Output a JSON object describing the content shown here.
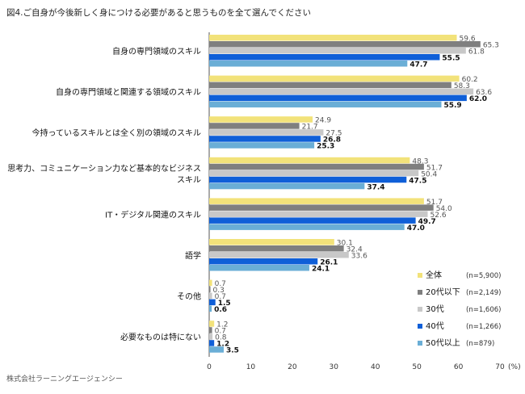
{
  "chart_data": {
    "type": "bar",
    "orientation": "horizontal",
    "title": "図4.ご自身が今後新しく身につける必要があると思うものを全て選んでください",
    "categories": [
      [
        "自身の専門領域のスキル"
      ],
      [
        "自身の専門領域と関連する領域のスキル"
      ],
      [
        "今持っているスキルとは全く別の領域のスキル"
      ],
      [
        "思考力、コミュニケーション力など基本的なビジネス",
        "スキル"
      ],
      [
        "IT・デジタル関連のスキル"
      ],
      [
        "語学"
      ],
      [
        "その他"
      ],
      [
        "必要なものは特にない"
      ]
    ],
    "series": [
      {
        "name": "全体",
        "n": "(n=5,900)",
        "color": "#f2e27a",
        "values": [
          59.6,
          60.2,
          24.9,
          48.3,
          51.7,
          30.1,
          0.7,
          1.2
        ]
      },
      {
        "name": "20代以下",
        "n": "(n=2,149)",
        "color": "#7f7f7f",
        "values": [
          65.3,
          58.3,
          21.7,
          51.7,
          54.0,
          32.4,
          0.3,
          0.7
        ]
      },
      {
        "name": "30代",
        "n": "(n=1,606)",
        "color": "#c8c8c8",
        "values": [
          61.8,
          63.6,
          27.5,
          50.4,
          52.6,
          33.6,
          0.7,
          0.8
        ]
      },
      {
        "name": "40代",
        "n": "(n=1,266)",
        "color": "#0f5fd8",
        "values": [
          55.5,
          62.0,
          26.8,
          47.5,
          49.7,
          26.1,
          1.5,
          1.2
        ]
      },
      {
        "name": "50代以上",
        "n": "(n=879)",
        "color": "#6aaed6",
        "values": [
          47.7,
          55.9,
          25.3,
          37.4,
          47.0,
          24.1,
          0.6,
          3.5
        ]
      }
    ],
    "xlim": [
      0,
      70
    ],
    "xticks": [
      0,
      10,
      20,
      30,
      40,
      50,
      60,
      70
    ],
    "xunit": "(%)",
    "legend": "bottom-right"
  },
  "footer": "株式会社ラーニングエージェンシー"
}
